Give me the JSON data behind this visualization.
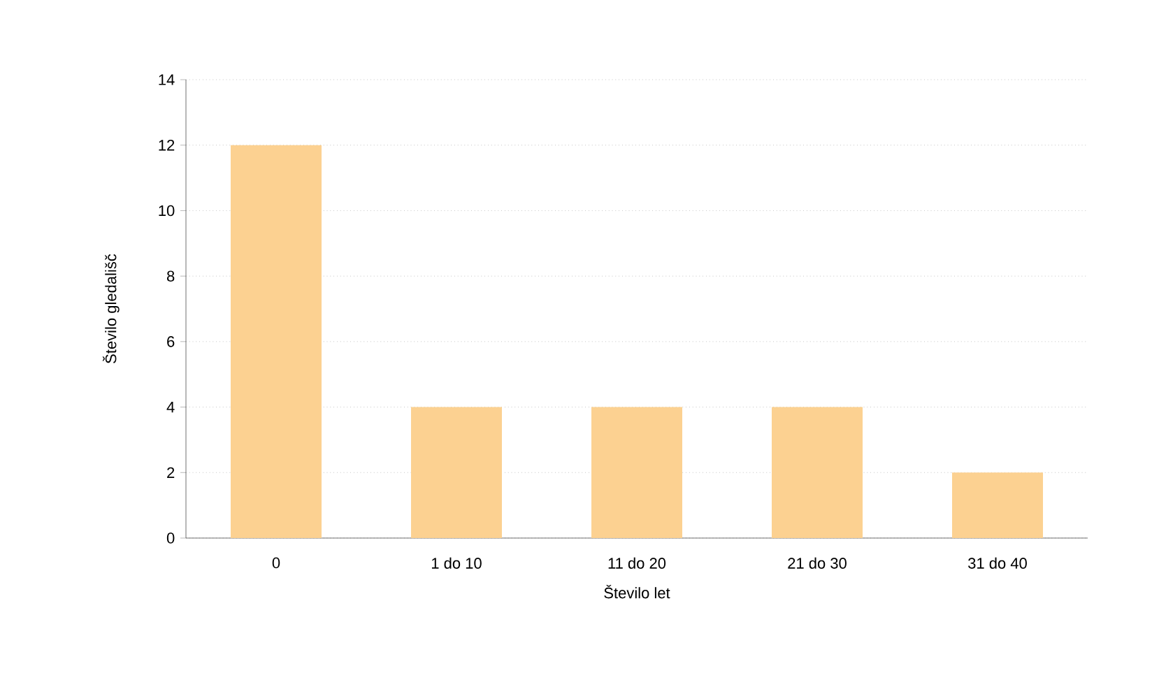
{
  "chart_data": {
    "type": "bar",
    "xlabel": "Število let",
    "ylabel": "Število gledališč",
    "categories": [
      "0",
      "1 do 10",
      "11 do 20",
      "21 do 30",
      "31 do 40"
    ],
    "values": [
      12,
      4,
      4,
      4,
      2
    ],
    "color": "#fcd191",
    "ylim": [
      0,
      14
    ],
    "yticks": [
      0,
      2,
      4,
      6,
      8,
      10,
      12,
      14
    ],
    "grid": "y"
  }
}
